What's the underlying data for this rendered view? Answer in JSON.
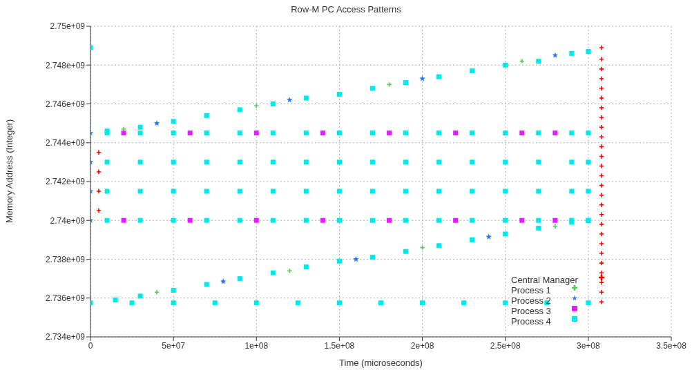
{
  "chart_data": {
    "type": "scatter",
    "title": "Row-M PC Access Patterns",
    "xlabel": "Time (microseconds)",
    "ylabel": "Memory Address (Integer)",
    "xlim": [
      0,
      350000000.0
    ],
    "ylim": [
      2734000000.0,
      2750000000.0
    ],
    "xticks": [
      0,
      {
        "value": 50000000.0,
        "label": "5e+07"
      },
      {
        "value": 100000000.0,
        "label": "1e+08"
      },
      {
        "value": 150000000.0,
        "label": "1.5e+08"
      },
      {
        "value": 200000000.0,
        "label": "2e+08"
      },
      {
        "value": 250000000.0,
        "label": "2.5e+08"
      },
      {
        "value": 300000000.0,
        "label": "3e+08"
      },
      {
        "value": 350000000.0,
        "label": "3.5e+08"
      }
    ],
    "yticks": [
      {
        "value": 2734000000.0,
        "label": "2.734e+09"
      },
      {
        "value": 2736000000.0,
        "label": "2.736e+09"
      },
      {
        "value": 2738000000.0,
        "label": "2.738e+09"
      },
      {
        "value": 2740000000.0,
        "label": "2.74e+09"
      },
      {
        "value": 2742000000.0,
        "label": "2.742e+09"
      },
      {
        "value": 2744000000.0,
        "label": "2.744e+09"
      },
      {
        "value": 2746000000.0,
        "label": "2.746e+09"
      },
      {
        "value": 2748000000.0,
        "label": "2.748e+09"
      },
      {
        "value": 2750000000.0,
        "label": "2.75e+09"
      }
    ],
    "grid": true,
    "legend": "bottom right",
    "series": [
      {
        "name": "Central Manager",
        "color": "#ff0000",
        "marker": "cross",
        "x": [
          5000000.0,
          5000000.0,
          5000000.0,
          5000000.0,
          308000000.0,
          308000000.0,
          308000000.0,
          308000000.0,
          308000000.0,
          308000000.0,
          308000000.0,
          308000000.0,
          308000000.0,
          308000000.0,
          308000000.0,
          308000000.0,
          308000000.0,
          308000000.0,
          308000000.0,
          308000000.0,
          308000000.0,
          308000000.0,
          308000000.0,
          308000000.0,
          308000000.0,
          308000000.0,
          308000000.0,
          308000000.0,
          308000000.0,
          308000000.0,
          308000000.0
        ],
        "values": [
          2740500000.0,
          2741500000.0,
          2742500000.0,
          2743500000.0,
          2735800000.0,
          2736300000.0,
          2736800000.0,
          2737300000.0,
          2737800000.0,
          2738300000.0,
          2738800000.0,
          2739300000.0,
          2739800000.0,
          2740300000.0,
          2740800000.0,
          2741300000.0,
          2741800000.0,
          2742300000.0,
          2742800000.0,
          2743300000.0,
          2743800000.0,
          2744300000.0,
          2744800000.0,
          2745300000.0,
          2745800000.0,
          2746300000.0,
          2746800000.0,
          2747300000.0,
          2747800000.0,
          2748300000.0,
          2748900000.0
        ]
      },
      {
        "name": "Process 1",
        "color": "#55cc55",
        "marker": "cross",
        "x": [
          20000000.0,
          100000000.0,
          180000000.0,
          260000000.0,
          40000000.0,
          120000000.0,
          200000000.0,
          280000000.0
        ],
        "values": [
          2744700000.0,
          2745900000.0,
          2747000000.0,
          2748200000.0,
          2736300000.0,
          2737400000.0,
          2738600000.0,
          2739700000.0
        ]
      },
      {
        "name": "Process 2",
        "color": "#2277ff",
        "marker": "star",
        "x": [
          0,
          0,
          0,
          0,
          40000000.0,
          120000000.0,
          200000000.0,
          280000000.0,
          80000000.0,
          160000000.0,
          240000000.0
        ],
        "values": [
          2740000000.0,
          2741500000.0,
          2743000000.0,
          2744500000.0,
          2745000000.0,
          2746200000.0,
          2747300000.0,
          2748500000.0,
          2736850000.0,
          2738000000.0,
          2739150000.0
        ]
      },
      {
        "name": "Process 3",
        "color": "#dd22ff",
        "marker": "square",
        "x": [
          20000000.0,
          60000000.0,
          100000000.0,
          140000000.0,
          180000000.0,
          220000000.0,
          260000000.0,
          280000000.0,
          20000000.0,
          60000000.0,
          100000000.0,
          140000000.0,
          180000000.0,
          220000000.0,
          260000000.0,
          280000000.0
        ],
        "values": [
          2744500000.0,
          2744500000.0,
          2744500000.0,
          2744500000.0,
          2744500000.0,
          2744500000.0,
          2744500000.0,
          2744500000.0,
          2740000000.0,
          2740000000.0,
          2740000000.0,
          2740000000.0,
          2740000000.0,
          2740000000.0,
          2740000000.0,
          2740000000.0
        ]
      },
      {
        "name": "Process 4",
        "color": "#00e8e8",
        "marker": "square",
        "x": [
          0,
          10000000.0,
          30000000.0,
          50000000.0,
          70000000.0,
          90000000.0,
          110000000.0,
          130000000.0,
          150000000.0,
          170000000.0,
          190000000.0,
          210000000.0,
          230000000.0,
          250000000.0,
          270000000.0,
          290000000.0,
          300000000.0,
          15000000.0,
          30000000.0,
          50000000.0,
          70000000.0,
          90000000.0,
          110000000.0,
          130000000.0,
          150000000.0,
          170000000.0,
          190000000.0,
          210000000.0,
          230000000.0,
          250000000.0,
          270000000.0,
          290000000.0,
          300000000.0,
          0,
          25000000.0,
          50000000.0,
          75000000.0,
          100000000.0,
          125000000.0,
          150000000.0,
          175000000.0,
          200000000.0,
          225000000.0,
          250000000.0,
          275000000.0,
          300000000.0,
          10000000.0,
          30000000.0,
          50000000.0,
          70000000.0,
          90000000.0,
          110000000.0,
          130000000.0,
          150000000.0,
          170000000.0,
          190000000.0,
          210000000.0,
          230000000.0,
          250000000.0,
          270000000.0,
          290000000.0,
          300000000.0,
          10000000.0,
          30000000.0,
          50000000.0,
          70000000.0,
          90000000.0,
          110000000.0,
          130000000.0,
          150000000.0,
          170000000.0,
          190000000.0,
          210000000.0,
          230000000.0,
          250000000.0,
          270000000.0,
          290000000.0,
          300000000.0,
          10000000.0,
          30000000.0,
          50000000.0,
          70000000.0,
          90000000.0,
          110000000.0,
          130000000.0,
          150000000.0,
          170000000.0,
          190000000.0,
          210000000.0,
          230000000.0,
          250000000.0,
          270000000.0,
          290000000.0,
          300000000.0,
          10000000.0,
          30000000.0,
          50000000.0,
          70000000.0,
          90000000.0,
          110000000.0,
          130000000.0,
          150000000.0,
          170000000.0,
          190000000.0,
          210000000.0,
          230000000.0,
          250000000.0,
          270000000.0,
          290000000.0,
          300000000.0
        ],
        "values": [
          2748900000.0,
          2744600000.0,
          2744800000.0,
          2745100000.0,
          2745400000.0,
          2745700000.0,
          2746000000.0,
          2746300000.0,
          2746500000.0,
          2746800000.0,
          2747100000.0,
          2747400000.0,
          2747700000.0,
          2748000000.0,
          2748200000.0,
          2748600000.0,
          2748700000.0,
          2735900000.0,
          2736100000.0,
          2736400000.0,
          2736700000.0,
          2737000000.0,
          2737300000.0,
          2737600000.0,
          2737900000.0,
          2738100000.0,
          2738400000.0,
          2738700000.0,
          2739000000.0,
          2739300000.0,
          2739600000.0,
          2739900000.0,
          2740000000.0,
          2735750000.0,
          2735750000.0,
          2735750000.0,
          2735750000.0,
          2735750000.0,
          2735750000.0,
          2735750000.0,
          2735750000.0,
          2735750000.0,
          2735750000.0,
          2735750000.0,
          2735750000.0,
          2735750000.0,
          2740000000.0,
          2740000000.0,
          2740000000.0,
          2740000000.0,
          2740000000.0,
          2740000000.0,
          2740000000.0,
          2740000000.0,
          2740000000.0,
          2740000000.0,
          2740000000.0,
          2740000000.0,
          2740000000.0,
          2740000000.0,
          2740000000.0,
          2740000000.0,
          2741500000.0,
          2741500000.0,
          2741500000.0,
          2741500000.0,
          2741500000.0,
          2741500000.0,
          2741500000.0,
          2741500000.0,
          2741500000.0,
          2741500000.0,
          2741500000.0,
          2741500000.0,
          2741500000.0,
          2741500000.0,
          2741500000.0,
          2741500000.0,
          2743000000.0,
          2743000000.0,
          2743000000.0,
          2743000000.0,
          2743000000.0,
          2743000000.0,
          2743000000.0,
          2743000000.0,
          2743000000.0,
          2743000000.0,
          2743000000.0,
          2743000000.0,
          2743000000.0,
          2743000000.0,
          2743000000.0,
          2743000000.0,
          2744500000.0,
          2744500000.0,
          2744500000.0,
          2744500000.0,
          2744500000.0,
          2744500000.0,
          2744500000.0,
          2744500000.0,
          2744500000.0,
          2744500000.0,
          2744500000.0,
          2744500000.0,
          2744500000.0,
          2744500000.0,
          2744500000.0,
          2744500000.0
        ]
      }
    ]
  }
}
